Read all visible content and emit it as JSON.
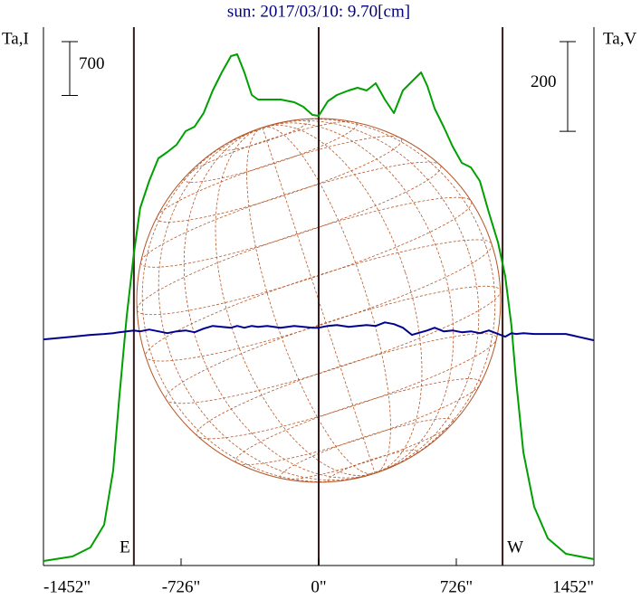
{
  "chart_data": {
    "type": "line",
    "title": "sun: 2017/03/10: 9.70[cm]",
    "ylabel": "Ta,I",
    "y2label": "Ta,V",
    "x": [
      -1452,
      -1299,
      -1204,
      -1132,
      -1084,
      -1052,
      -1013,
      -975,
      -942,
      -894,
      -846,
      -798,
      -750,
      -702,
      -655,
      -607,
      -559,
      -511,
      -463,
      -430,
      -392,
      -353,
      -320,
      -272,
      -201,
      -129,
      -81,
      -33,
      0,
      48,
      96,
      158,
      205,
      253,
      301,
      349,
      397,
      444,
      492,
      540,
      573,
      612,
      659,
      707,
      755,
      803,
      850,
      898,
      946,
      984,
      1017,
      1041,
      1080,
      1137,
      1209,
      1304,
      1452
    ],
    "series": [
      {
        "name": "Ta,I",
        "color": "#00a000",
        "axis": "y",
        "values": [
          59,
          118,
          235,
          529,
          1235,
          2176,
          3235,
          4059,
          4647,
          5000,
          5294,
          5376,
          5471,
          5647,
          5706,
          5882,
          6176,
          6412,
          6623,
          6647,
          6412,
          6118,
          6059,
          6059,
          6059,
          6024,
          5965,
          5859,
          5847,
          6035,
          6118,
          6176,
          6212,
          6176,
          6271,
          6059,
          5882,
          6176,
          6294,
          6412,
          6235,
          5941,
          5706,
          5447,
          5235,
          5176,
          5000,
          4588,
          4200,
          3765,
          3118,
          2412,
          1471,
          765,
          353,
          153,
          82
        ]
      },
      {
        "name": "Ta,V",
        "color": "#000090",
        "axis": "y2",
        "values": [
          -96,
          -90,
          -86,
          -84,
          -82,
          -80,
          -78,
          -76,
          -78,
          -74,
          -78,
          -82,
          -78,
          -76,
          -80,
          -72,
          -66,
          -68,
          -70,
          -66,
          -70,
          -66,
          -68,
          -66,
          -70,
          -66,
          -68,
          -70,
          -70,
          -66,
          -64,
          -68,
          -66,
          -64,
          -66,
          -58,
          -62,
          -70,
          -86,
          -80,
          -76,
          -70,
          -78,
          -76,
          -80,
          -78,
          -82,
          -76,
          -84,
          -90,
          -82,
          -84,
          -82,
          -84,
          -84,
          -84,
          -98
        ]
      }
    ],
    "xlim": [
      -1452,
      1452
    ],
    "xticks": [
      {
        "value": -1452,
        "label": "-1452\""
      },
      {
        "value": -726,
        "label": "-726\""
      },
      {
        "value": 0,
        "label": "0\""
      },
      {
        "value": 726,
        "label": "726\""
      },
      {
        "value": 1452,
        "label": "1452\""
      }
    ],
    "ylim": [
      0,
      7000
    ],
    "y2lim": [
      -600,
      600
    ],
    "ybar": 700,
    "y2bar": 200,
    "markers": [
      {
        "x": -975,
        "label": "E"
      },
      {
        "x": 0
      },
      {
        "x": 970,
        "label": "W"
      }
    ],
    "disk_radius": 960,
    "line_color": "#3a1a1a",
    "disk_color": "#b5582a"
  }
}
